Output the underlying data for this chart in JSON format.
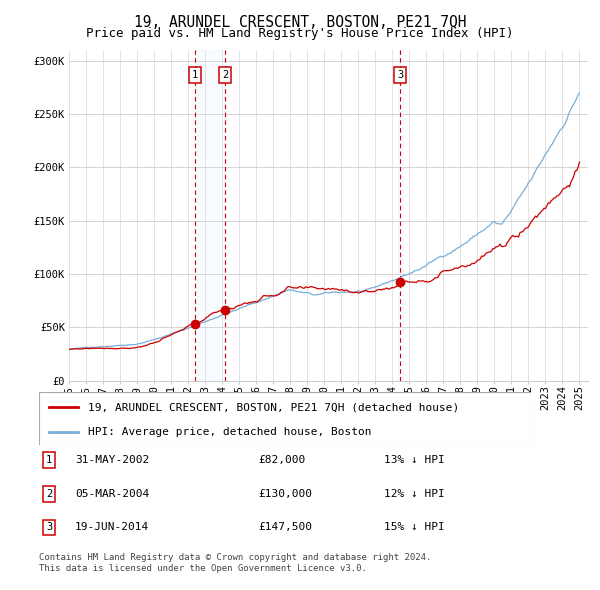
{
  "title": "19, ARUNDEL CRESCENT, BOSTON, PE21 7QH",
  "subtitle": "Price paid vs. HM Land Registry's House Price Index (HPI)",
  "ylabel_ticks": [
    "£0",
    "£50K",
    "£100K",
    "£150K",
    "£200K",
    "£250K",
    "£300K"
  ],
  "ytick_values": [
    0,
    50000,
    100000,
    150000,
    200000,
    250000,
    300000
  ],
  "ylim": [
    0,
    310000
  ],
  "xlim_start": 1995.0,
  "xlim_end": 2025.5,
  "transactions": [
    {
      "label": "1",
      "date": "31-MAY-2002",
      "price": 82000,
      "year": 2002.41,
      "pct": "13%",
      "dir": "↓"
    },
    {
      "label": "2",
      "date": "05-MAR-2004",
      "price": 130000,
      "year": 2004.17,
      "pct": "12%",
      "dir": "↓"
    },
    {
      "label": "3",
      "date": "19-JUN-2014",
      "price": 147500,
      "year": 2014.46,
      "pct": "15%",
      "dir": "↓"
    }
  ],
  "legend_line1": "19, ARUNDEL CRESCENT, BOSTON, PE21 7QH (detached house)",
  "legend_line2": "HPI: Average price, detached house, Boston",
  "footnote1": "Contains HM Land Registry data © Crown copyright and database right 2024.",
  "footnote2": "This data is licensed under the Open Government Licence v3.0.",
  "hpi_color": "#7aaed6",
  "price_color": "#cc0000",
  "transaction_box_color": "#cc0000",
  "vline_color": "#cc0000",
  "shade_color": "#ddeeff",
  "grid_color": "#cccccc",
  "bg_color": "#ffffff",
  "title_fontsize": 10.5,
  "subtitle_fontsize": 9,
  "tick_fontsize": 7.5,
  "legend_fontsize": 8,
  "table_fontsize": 8,
  "footnote_fontsize": 6.5
}
